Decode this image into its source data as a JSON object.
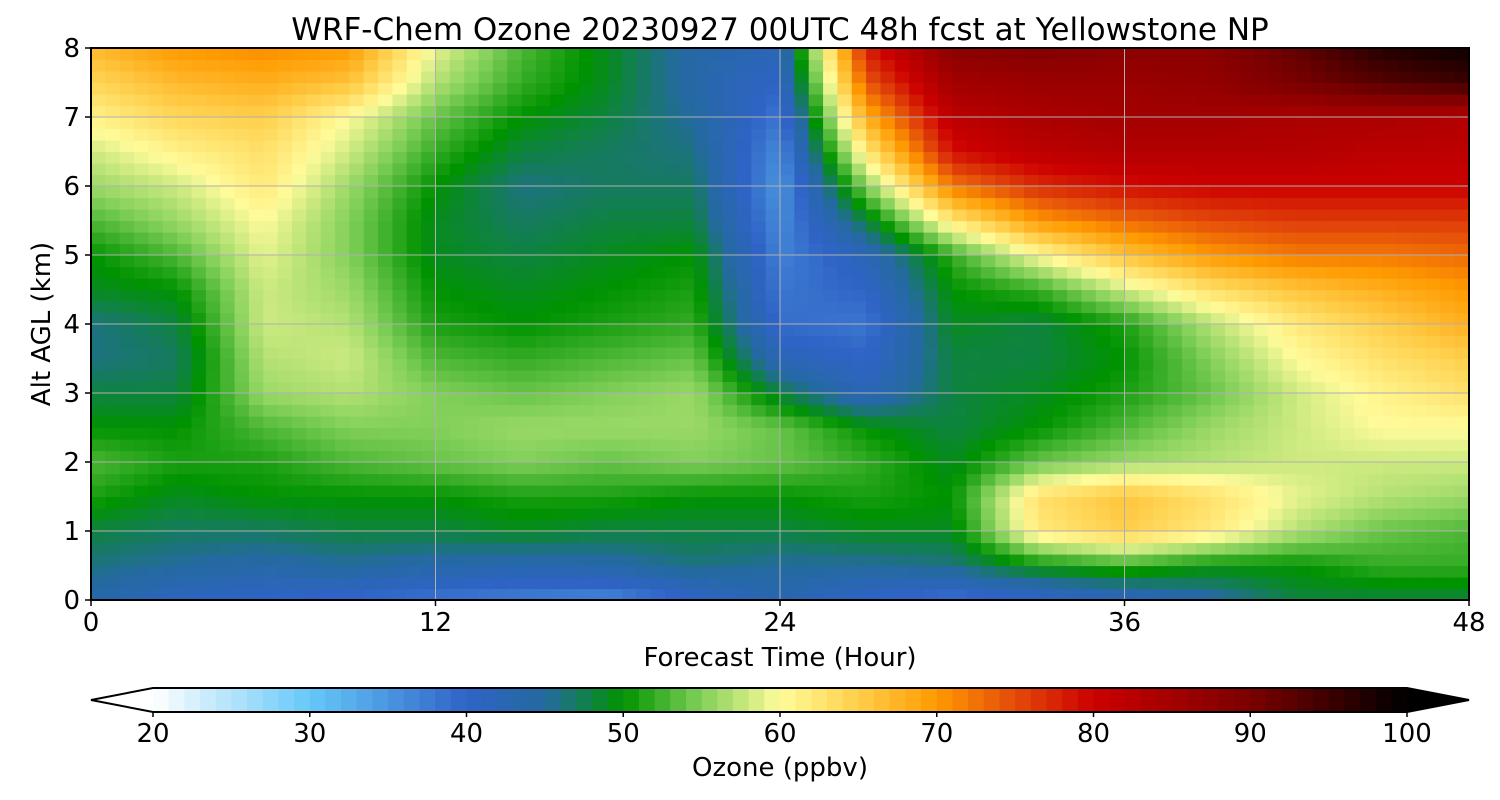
{
  "chart_data": {
    "type": "heatmap",
    "title": "WRF-Chem Ozone  20230927 00UTC 48h fcst at Yellowstone NP",
    "xlabel": "Forecast Time (Hour)",
    "ylabel": "Alt AGL (km)",
    "xlim": [
      0,
      48
    ],
    "ylim": [
      0,
      8
    ],
    "xticks": [
      "0",
      "12",
      "24",
      "36",
      "48"
    ],
    "yticks": [
      "0",
      "1",
      "2",
      "3",
      "4",
      "5",
      "6",
      "7",
      "8"
    ],
    "grid": true,
    "x_hours": [
      0,
      3,
      6,
      9,
      12,
      15,
      18,
      21,
      24,
      27,
      30,
      33,
      36,
      39,
      42,
      45,
      48
    ],
    "z_km": [
      0,
      0.5,
      1,
      1.5,
      2,
      2.5,
      3,
      3.5,
      4,
      4.5,
      5,
      5.5,
      6,
      6.5,
      7,
      7.5,
      8
    ],
    "values_ppbv": [
      [
        44,
        41,
        40,
        39,
        38,
        37,
        36,
        40,
        43,
        40,
        38,
        40,
        41,
        44,
        48,
        48,
        48
      ],
      [
        46,
        45,
        44,
        45,
        44,
        43,
        44,
        46,
        45,
        45,
        46,
        50,
        52,
        50,
        50,
        52,
        52
      ],
      [
        48,
        47,
        47,
        48,
        48,
        49,
        48,
        48,
        48,
        49,
        49,
        62,
        65,
        62,
        57,
        54,
        53
      ],
      [
        51,
        49,
        50,
        50,
        50,
        51,
        51,
        50,
        50,
        51,
        50,
        63,
        66,
        63,
        59,
        57,
        56
      ],
      [
        53,
        51,
        51,
        53,
        54,
        55,
        54,
        55,
        54,
        52,
        49,
        54,
        56,
        57,
        58,
        58,
        58
      ],
      [
        50,
        50,
        53,
        55,
        55,
        56,
        56,
        56,
        54,
        50,
        48,
        50,
        53,
        56,
        58,
        60,
        60
      ],
      [
        48,
        48,
        56,
        57,
        55,
        54,
        55,
        56,
        48,
        42,
        48,
        49,
        51,
        54,
        58,
        61,
        63
      ],
      [
        46,
        47,
        57,
        58,
        53,
        52,
        53,
        54,
        42,
        40,
        48,
        48,
        50,
        55,
        60,
        63,
        65
      ],
      [
        46,
        48,
        58,
        57,
        51,
        50,
        51,
        52,
        39,
        38,
        49,
        48,
        51,
        57,
        62,
        65,
        68
      ],
      [
        49,
        50,
        58,
        56,
        50,
        49,
        50,
        51,
        38,
        40,
        50,
        52,
        58,
        63,
        66,
        68,
        70
      ],
      [
        50,
        53,
        59,
        55,
        49,
        48,
        49,
        50,
        37,
        42,
        52,
        60,
        66,
        70,
        72,
        72,
        73
      ],
      [
        53,
        56,
        60,
        55,
        49,
        47,
        48,
        48,
        36,
        48,
        62,
        70,
        73,
        75,
        76,
        76,
        76
      ],
      [
        56,
        58,
        62,
        56,
        50,
        46,
        47,
        47,
        35,
        55,
        72,
        77,
        79,
        80,
        80,
        80,
        80
      ],
      [
        58,
        61,
        63,
        58,
        52,
        48,
        47,
        46,
        36,
        62,
        79,
        82,
        83,
        83,
        83,
        82,
        82
      ],
      [
        61,
        64,
        65,
        60,
        54,
        50,
        48,
        45,
        38,
        68,
        82,
        84,
        85,
        85,
        84,
        84,
        83
      ],
      [
        64,
        67,
        68,
        66,
        57,
        52,
        49,
        44,
        40,
        74,
        85,
        86,
        86,
        87,
        90,
        93,
        95
      ],
      [
        67,
        70,
        71,
        70,
        59,
        53,
        49,
        44,
        42,
        78,
        88,
        89,
        88,
        88,
        92,
        97,
        99
      ]
    ],
    "colorbar": {
      "label": "Ozone  (ppbv)",
      "min": 20,
      "max": 100,
      "ticks": [
        "20",
        "30",
        "40",
        "50",
        "60",
        "70",
        "80",
        "90",
        "100"
      ],
      "extend": "both",
      "colormap_stops": [
        {
          "v": 20,
          "c": "#ffffff"
        },
        {
          "v": 30,
          "c": "#66c8f8"
        },
        {
          "v": 40,
          "c": "#2f63c6"
        },
        {
          "v": 45,
          "c": "#246aa0"
        },
        {
          "v": 50,
          "c": "#009300"
        },
        {
          "v": 55,
          "c": "#82d05a"
        },
        {
          "v": 60,
          "c": "#fffb9a"
        },
        {
          "v": 65,
          "c": "#ffce4a"
        },
        {
          "v": 70,
          "c": "#ff9a00"
        },
        {
          "v": 75,
          "c": "#e34a0a"
        },
        {
          "v": 80,
          "c": "#cc0000"
        },
        {
          "v": 90,
          "c": "#7a0000"
        },
        {
          "v": 100,
          "c": "#000000"
        }
      ]
    }
  }
}
